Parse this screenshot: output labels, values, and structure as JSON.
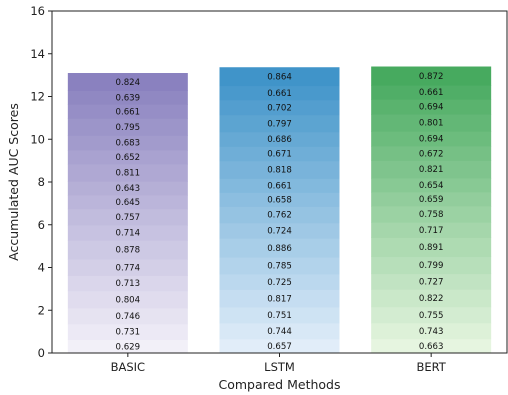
{
  "chart_data": {
    "type": "bar",
    "stacked": true,
    "categories": [
      "BASIC",
      "LSTM",
      "BERT"
    ],
    "segments_bottom_to_top": [
      [
        0.629,
        0.731,
        0.746,
        0.804,
        0.713,
        0.774,
        0.878,
        0.714,
        0.757,
        0.645,
        0.643,
        0.811,
        0.652,
        0.683,
        0.795,
        0.661,
        0.639,
        0.824
      ],
      [
        0.657,
        0.744,
        0.751,
        0.817,
        0.725,
        0.785,
        0.886,
        0.724,
        0.762,
        0.658,
        0.661,
        0.818,
        0.671,
        0.686,
        0.797,
        0.702,
        0.661,
        0.864
      ],
      [
        0.663,
        0.743,
        0.755,
        0.822,
        0.727,
        0.799,
        0.891,
        0.717,
        0.758,
        0.659,
        0.654,
        0.821,
        0.672,
        0.694,
        0.801,
        0.694,
        0.661,
        0.872
      ]
    ],
    "colors": {
      "BASIC": {
        "bottom": "#f2f0f8",
        "top": "#8a81bf"
      },
      "LSTM": {
        "bottom": "#e1edf9",
        "top": "#4094c9"
      },
      "BERT": {
        "bottom": "#e6f5e0",
        "top": "#47aa5f"
      }
    },
    "xlabel": "Compared Methods",
    "ylabel": "Accumulated AUC Scores",
    "ylim": [
      0,
      16
    ],
    "yticks": [
      0,
      2,
      4,
      6,
      8,
      10,
      12,
      14,
      16
    ],
    "grid": false,
    "legend": "none"
  }
}
